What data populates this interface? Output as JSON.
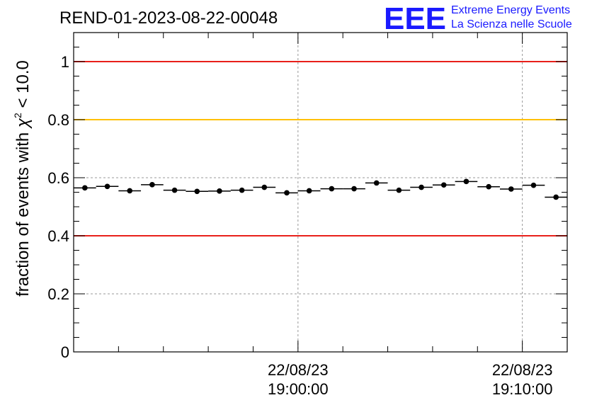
{
  "header": {
    "title": "REND-01-2023-08-22-00048",
    "logo_text": "EEE",
    "logo_line1": "Extreme Energy Events",
    "logo_line2": "La Scienza nelle Scuole"
  },
  "colors": {
    "red_line": "#e8201a",
    "yellow_line": "#ffc000",
    "points": "#000000",
    "grid": "#999999",
    "logo": "#1a1aff"
  },
  "chart_data": {
    "type": "scatter",
    "title": "REND-01-2023-08-22-00048",
    "ylabel_main": "fraction of events with ",
    "ylabel_chi": "χ",
    "ylabel_sup": "2",
    "ylabel_tail": " < 10.0",
    "ylim": [
      0,
      1.1
    ],
    "y_ticks": [
      {
        "value": 0,
        "label": "0"
      },
      {
        "value": 0.2,
        "label": "0.2"
      },
      {
        "value": 0.4,
        "label": "0.4"
      },
      {
        "value": 0.6,
        "label": "0.6"
      },
      {
        "value": 0.8,
        "label": "0.8"
      },
      {
        "value": 1,
        "label": "1"
      }
    ],
    "x_unit": "minutes after 18:50:00 on 22/08/23",
    "xlim": [
      -0.5,
      21.5
    ],
    "x_ticks": [
      {
        "value": 9.5,
        "line1": "22/08/23",
        "line2": "19:00:00"
      },
      {
        "value": 19.5,
        "line1": "22/08/23",
        "line2": "19:10:00"
      }
    ],
    "x_minor_ticks": [
      1.5,
      3.5,
      5.5,
      7.5,
      11.5,
      13.5,
      15.5,
      17.5
    ],
    "y_grid": [
      0.2,
      0.6
    ],
    "reference_lines": [
      {
        "value": 1.0,
        "color": "red"
      },
      {
        "value": 0.8,
        "color": "yellow"
      },
      {
        "value": 0.4,
        "color": "red"
      }
    ],
    "series": [
      {
        "x": [
          0,
          1,
          2,
          3,
          4,
          5,
          6,
          7,
          8,
          9,
          10,
          11,
          12,
          13,
          14,
          15,
          16,
          17,
          18,
          19,
          20,
          21
        ],
        "y": [
          0.565,
          0.57,
          0.555,
          0.576,
          0.557,
          0.553,
          0.554,
          0.557,
          0.567,
          0.548,
          0.555,
          0.562,
          0.562,
          0.582,
          0.557,
          0.567,
          0.575,
          0.587,
          0.569,
          0.561,
          0.574,
          0.533
        ],
        "xerr": 0.5
      }
    ]
  }
}
